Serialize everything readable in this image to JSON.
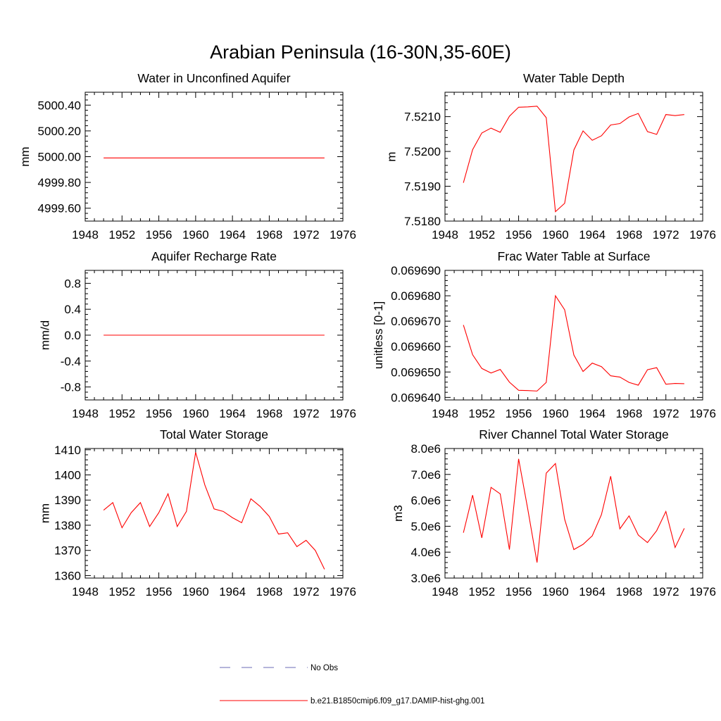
{
  "figure_title": "Arabian Peninsula (16-30N,35-60E)",
  "colors": {
    "model": "#ff0000",
    "obs": "#6b6bb5",
    "axis": "#000000"
  },
  "legend": {
    "items": [
      {
        "label": "No Obs",
        "style": "dashed"
      },
      {
        "label": "b.e21.B1850cmip6.f09_g17.DAMIP-hist-ghg.001",
        "style": "solid"
      }
    ]
  },
  "chart_data": [
    {
      "type": "line",
      "title": "Water in Unconfined Aquifer",
      "ylabel": "mm",
      "xlim": [
        1948,
        1976
      ],
      "ylim": [
        4999.5,
        5000.5
      ],
      "xticks": [
        "1948",
        "1952",
        "1956",
        "1960",
        "1964",
        "1968",
        "1972",
        "1976"
      ],
      "yticks": [
        {
          "v": 4999.6,
          "label": "4999.60"
        },
        {
          "v": 4999.8,
          "label": "4999.80"
        },
        {
          "v": 5000.0,
          "label": "5000.00"
        },
        {
          "v": 5000.2,
          "label": "5000.20"
        },
        {
          "v": 5000.4,
          "label": "5000.40"
        }
      ],
      "x": [
        1950,
        1951,
        1952,
        1953,
        1954,
        1955,
        1956,
        1957,
        1958,
        1959,
        1960,
        1961,
        1962,
        1963,
        1964,
        1965,
        1966,
        1967,
        1968,
        1969,
        1970,
        1971,
        1972,
        1973,
        1974
      ],
      "y": [
        4999.99,
        4999.99,
        4999.99,
        4999.99,
        4999.99,
        4999.99,
        4999.99,
        4999.99,
        4999.99,
        4999.99,
        4999.99,
        4999.99,
        4999.99,
        4999.99,
        4999.99,
        4999.99,
        4999.99,
        4999.99,
        4999.99,
        4999.99,
        4999.99,
        4999.99,
        4999.99,
        4999.99,
        4999.99
      ]
    },
    {
      "type": "line",
      "title": "Water Table Depth",
      "ylabel": "m",
      "xlim": [
        1948,
        1976
      ],
      "ylim": [
        7.518,
        7.5217
      ],
      "xticks": [
        "1948",
        "1952",
        "1956",
        "1960",
        "1964",
        "1968",
        "1972",
        "1976"
      ],
      "yticks": [
        {
          "v": 7.518,
          "label": "7.5180"
        },
        {
          "v": 7.519,
          "label": "7.5190"
        },
        {
          "v": 7.52,
          "label": "7.5200"
        },
        {
          "v": 7.521,
          "label": "7.5210"
        }
      ],
      "x": [
        1950,
        1951,
        1952,
        1953,
        1954,
        1955,
        1956,
        1957,
        1958,
        1959,
        1960,
        1961,
        1962,
        1963,
        1964,
        1965,
        1966,
        1967,
        1968,
        1969,
        1970,
        1971,
        1972,
        1973,
        1974
      ],
      "y": [
        7.5191,
        7.52005,
        7.52053,
        7.52067,
        7.52055,
        7.52101,
        7.52127,
        7.52128,
        7.5213,
        7.52097,
        7.51827,
        7.51851,
        7.52004,
        7.52059,
        7.52032,
        7.52045,
        7.52076,
        7.5208,
        7.52099,
        7.52109,
        7.52057,
        7.52049,
        7.52106,
        7.52103,
        7.52106
      ]
    },
    {
      "type": "line",
      "title": "Aquifer Recharge Rate",
      "ylabel": "mm/d",
      "xlim": [
        1948,
        1976
      ],
      "ylim": [
        -1.0,
        1.0
      ],
      "xticks": [
        "1948",
        "1952",
        "1956",
        "1960",
        "1964",
        "1968",
        "1972",
        "1976"
      ],
      "yticks": [
        {
          "v": -0.8,
          "label": "-0.8"
        },
        {
          "v": -0.4,
          "label": "-0.4"
        },
        {
          "v": 0.0,
          "label": "0.0"
        },
        {
          "v": 0.4,
          "label": "0.4"
        },
        {
          "v": 0.8,
          "label": "0.8"
        }
      ],
      "x": [
        1950,
        1951,
        1952,
        1953,
        1954,
        1955,
        1956,
        1957,
        1958,
        1959,
        1960,
        1961,
        1962,
        1963,
        1964,
        1965,
        1966,
        1967,
        1968,
        1969,
        1970,
        1971,
        1972,
        1973,
        1974
      ],
      "y": [
        0,
        0,
        0,
        0,
        0,
        0,
        0,
        0,
        0,
        0,
        0,
        0,
        0,
        0,
        0,
        0,
        0,
        0,
        0,
        0,
        0,
        0,
        0,
        0,
        0
      ]
    },
    {
      "type": "line",
      "title": "Frac Water Table at Surface",
      "ylabel": "unitless [0-1]",
      "xlim": [
        1948,
        1976
      ],
      "ylim": [
        0.0696399,
        0.0696909
      ],
      "xticks": [
        "1948",
        "1952",
        "1956",
        "1960",
        "1964",
        "1968",
        "1972",
        "1976"
      ],
      "yticks": [
        {
          "v": 0.0696409,
          "label": "0.069640"
        },
        {
          "v": 0.0696509,
          "label": "0.069650"
        },
        {
          "v": 0.0696609,
          "label": "0.069660"
        },
        {
          "v": 0.0696709,
          "label": "0.069670"
        },
        {
          "v": 0.0696809,
          "label": "0.069680"
        },
        {
          "v": 0.0696909,
          "label": "0.069690"
        }
      ],
      "x": [
        1950,
        1951,
        1952,
        1953,
        1954,
        1955,
        1956,
        1957,
        1958,
        1959,
        1960,
        1961,
        1962,
        1963,
        1964,
        1965,
        1966,
        1967,
        1968,
        1969,
        1970,
        1971,
        1972,
        1973,
        1974
      ],
      "y": [
        0.0696694,
        0.0696577,
        0.0696523,
        0.0696505,
        0.0696519,
        0.0696469,
        0.0696437,
        0.0696436,
        0.0696434,
        0.0696468,
        0.0696809,
        0.0696754,
        0.0696576,
        0.0696511,
        0.0696544,
        0.069653,
        0.0696494,
        0.0696489,
        0.0696468,
        0.0696457,
        0.0696518,
        0.0696526,
        0.0696461,
        0.0696464,
        0.0696463
      ]
    },
    {
      "type": "line",
      "title": "Total Water Storage",
      "ylabel": "mm",
      "xlim": [
        1948,
        1976
      ],
      "ylim": [
        1359,
        1410.5
      ],
      "xticks": [
        "1948",
        "1952",
        "1956",
        "1960",
        "1964",
        "1968",
        "1972",
        "1976"
      ],
      "yticks": [
        {
          "v": 1360,
          "label": "1360"
        },
        {
          "v": 1370,
          "label": "1370"
        },
        {
          "v": 1380,
          "label": "1380"
        },
        {
          "v": 1390,
          "label": "1390"
        },
        {
          "v": 1400,
          "label": "1400"
        },
        {
          "v": 1410,
          "label": "1410"
        }
      ],
      "x": [
        1950,
        1951,
        1952,
        1953,
        1954,
        1955,
        1956,
        1957,
        1958,
        1959,
        1960,
        1961,
        1962,
        1963,
        1964,
        1965,
        1966,
        1967,
        1968,
        1969,
        1970,
        1971,
        1972,
        1973,
        1974
      ],
      "y": [
        1386,
        1389,
        1379,
        1385,
        1389,
        1379.5,
        1385,
        1392.5,
        1379.5,
        1385.5,
        1409,
        1396,
        1386.5,
        1385.5,
        1383,
        1381,
        1390.5,
        1387.5,
        1383.5,
        1376.5,
        1377,
        1371.5,
        1374,
        1370,
        1362.5
      ]
    },
    {
      "type": "line",
      "title": "River Channel Total Water Storage",
      "ylabel": "m3",
      "xlim": [
        1948,
        1976
      ],
      "ylim": [
        3000000,
        8000000
      ],
      "xticks": [
        "1948",
        "1952",
        "1956",
        "1960",
        "1964",
        "1968",
        "1972",
        "1976"
      ],
      "yticks": [
        {
          "v": 3000000,
          "label": "3.0e6"
        },
        {
          "v": 4000000,
          "label": "4.0e6"
        },
        {
          "v": 5000000,
          "label": "5.0e6"
        },
        {
          "v": 6000000,
          "label": "6.0e6"
        },
        {
          "v": 7000000,
          "label": "7.0e6"
        },
        {
          "v": 8000000,
          "label": "8.0e6"
        }
      ],
      "x": [
        1950,
        1951,
        1952,
        1953,
        1954,
        1955,
        1956,
        1957,
        1958,
        1959,
        1960,
        1961,
        1962,
        1963,
        1964,
        1965,
        1966,
        1967,
        1968,
        1969,
        1970,
        1971,
        1972,
        1973,
        1974
      ],
      "y": [
        4750000,
        6200000,
        4550000,
        6500000,
        6250000,
        4100000,
        7600000,
        5650000,
        3600000,
        7050000,
        7420000,
        5270000,
        4100000,
        4300000,
        4630000,
        5450000,
        6930000,
        4900000,
        5400000,
        4660000,
        4370000,
        4830000,
        5570000,
        4180000,
        4920000
      ]
    }
  ]
}
